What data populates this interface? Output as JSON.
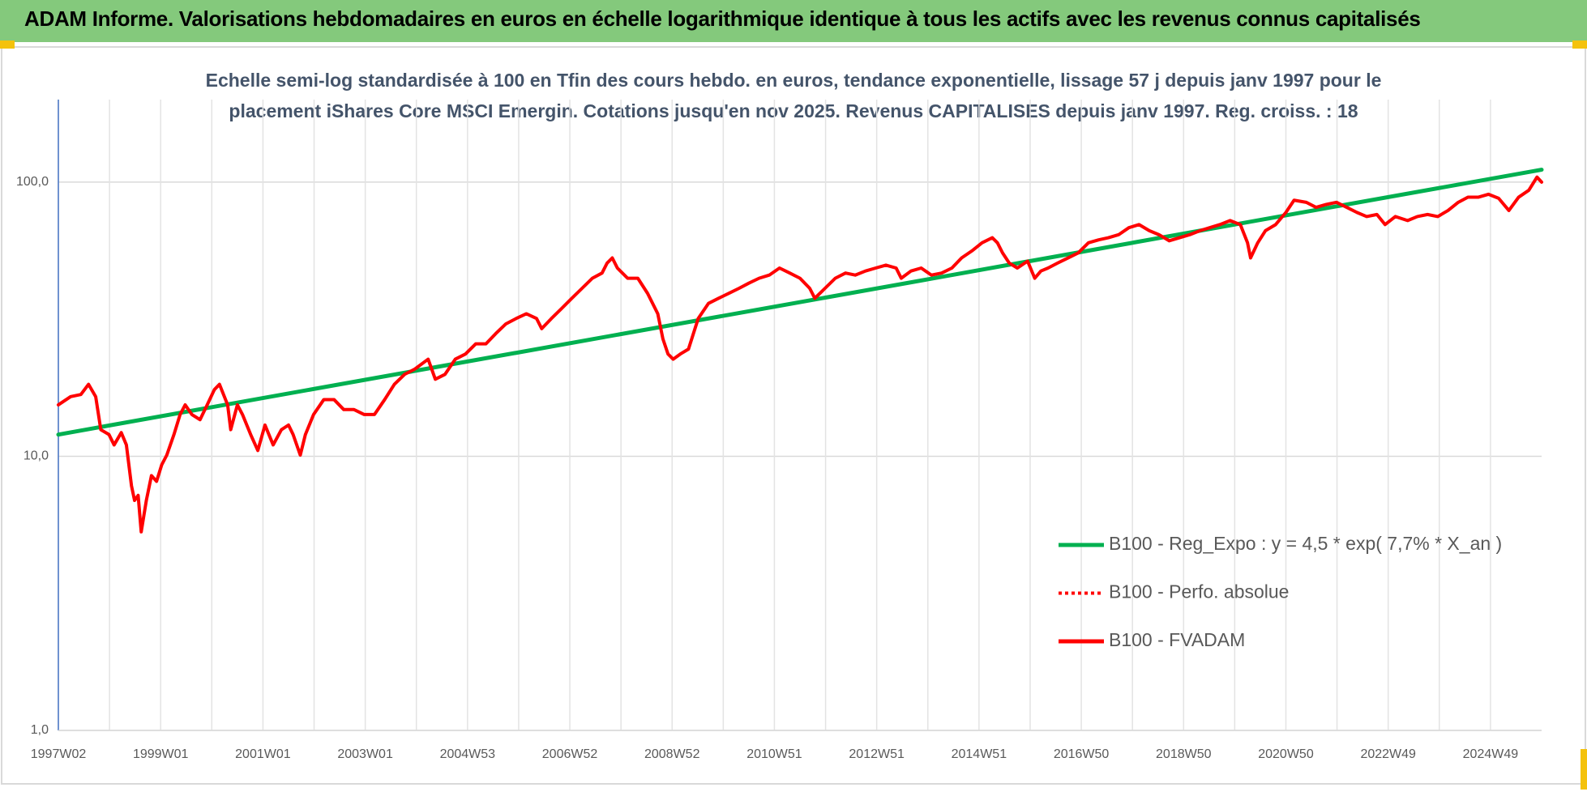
{
  "header": {
    "title": "ADAM Informe. Valorisations hebdomadaires en euros en échelle logarithmique identique à tous les actifs avec les revenus connus capitalisés"
  },
  "chart_data": {
    "type": "line",
    "subtitle": [
      "Echelle semi-log standardisée à 100 en Tfin des cours hebdo. en euros, tendance exponentielle, lissage 57 j depuis janv 1997 pour le",
      "placement iShares Core MSCI Emergin. Cotations jusqu'en nov 2025. Revenus CAPITALISES depuis janv 1997. Reg. croiss. : 18"
    ],
    "log_y": true,
    "grid": true,
    "legend": "lower right",
    "xlim": [
      1997,
      2026
    ],
    "xticks": [
      {
        "value": 1997,
        "label": "1997W02"
      },
      {
        "value": 1999,
        "label": "1999W01"
      },
      {
        "value": 2001,
        "label": "2001W01"
      },
      {
        "value": 2003,
        "label": "2003W01"
      },
      {
        "value": 2005,
        "label": "2004W53"
      },
      {
        "value": 2007,
        "label": "2006W52"
      },
      {
        "value": 2009,
        "label": "2008W52"
      },
      {
        "value": 2011,
        "label": "2010W51"
      },
      {
        "value": 2013,
        "label": "2012W51"
      },
      {
        "value": 2015,
        "label": "2014W51"
      },
      {
        "value": 2017,
        "label": "2016W50"
      },
      {
        "value": 2019,
        "label": "2018W50"
      },
      {
        "value": 2021,
        "label": "2020W50"
      },
      {
        "value": 2023,
        "label": "2022W49"
      },
      {
        "value": 2025,
        "label": "2024W49"
      }
    ],
    "ylim": [
      1,
      200
    ],
    "yticks": [
      {
        "value": 1,
        "label": "1,0"
      },
      {
        "value": 10,
        "label": "10,0"
      },
      {
        "value": 100,
        "label": "100,0"
      }
    ],
    "series": [
      {
        "name": "B100 - Reg_Expo : y = 4,5 * exp( 7,7% *  X_an )",
        "color": "#00b050",
        "x": [
          1997,
          2026
        ],
        "values": [
          12,
          111
        ]
      },
      {
        "name": "B100 - Perfo. absolue",
        "color": "#ff0000",
        "dash": "dotted"
      },
      {
        "name": "B100 - FVADAM",
        "color": "#ff0000",
        "x": [
          1997.0,
          1997.24,
          1997.44,
          1997.59,
          1997.73,
          1997.83,
          1997.99,
          1998.09,
          1998.23,
          1998.33,
          1998.43,
          1998.49,
          1998.56,
          1998.62,
          1998.72,
          1998.82,
          1998.92,
          1999.02,
          1999.12,
          1999.26,
          1999.38,
          1999.48,
          1999.61,
          1999.77,
          1999.91,
          2000.05,
          2000.15,
          2000.31,
          2000.37,
          2000.5,
          2000.6,
          2000.76,
          2000.9,
          2001.04,
          2001.2,
          2001.36,
          2001.5,
          2001.59,
          2001.73,
          2001.83,
          2001.99,
          2002.19,
          2002.39,
          2002.58,
          2002.78,
          2002.98,
          2003.18,
          2003.38,
          2003.57,
          2003.77,
          2003.97,
          2004.23,
          2004.37,
          2004.56,
          2004.76,
          2004.96,
          2005.16,
          2005.36,
          2005.55,
          2005.75,
          2005.95,
          2006.15,
          2006.35,
          2006.45,
          2006.64,
          2006.84,
          2007.04,
          2007.24,
          2007.44,
          2007.63,
          2007.73,
          2007.83,
          2007.93,
          2008.13,
          2008.33,
          2008.52,
          2008.72,
          2008.82,
          2008.92,
          2009.02,
          2009.16,
          2009.32,
          2009.51,
          2009.71,
          2009.91,
          2010.11,
          2010.31,
          2010.5,
          2010.7,
          2010.9,
          2011.1,
          2011.3,
          2011.5,
          2011.69,
          2011.79,
          2011.99,
          2012.19,
          2012.39,
          2012.58,
          2012.78,
          2012.98,
          2013.18,
          2013.38,
          2013.48,
          2013.67,
          2013.87,
          2014.07,
          2014.27,
          2014.47,
          2014.66,
          2014.86,
          2015.06,
          2015.26,
          2015.36,
          2015.46,
          2015.59,
          2015.75,
          2015.95,
          2016.09,
          2016.21,
          2016.35,
          2016.54,
          2016.74,
          2016.94,
          2017.14,
          2017.34,
          2017.53,
          2017.73,
          2017.93,
          2018.13,
          2018.33,
          2018.52,
          2018.72,
          2018.92,
          2019.12,
          2019.32,
          2019.51,
          2019.71,
          2019.91,
          2020.11,
          2020.25,
          2020.31,
          2020.45,
          2020.6,
          2020.8,
          2021.0,
          2021.16,
          2021.4,
          2021.59,
          2021.79,
          2021.99,
          2022.19,
          2022.39,
          2022.58,
          2022.78,
          2022.94,
          2023.14,
          2023.38,
          2023.57,
          2023.77,
          2023.97,
          2024.17,
          2024.37,
          2024.56,
          2024.76,
          2024.96,
          2025.16,
          2025.36,
          2025.55,
          2025.75,
          2025.91,
          2026.0
        ],
        "values": [
          15.4,
          16.5,
          16.8,
          18.3,
          16.5,
          12.5,
          12.0,
          11.0,
          12.2,
          11.0,
          7.8,
          6.9,
          7.2,
          5.3,
          6.9,
          8.5,
          8.1,
          9.3,
          10.1,
          12.0,
          14.2,
          15.4,
          14.2,
          13.6,
          15.4,
          17.5,
          18.3,
          15.4,
          12.5,
          15.4,
          14.2,
          12.0,
          10.5,
          13.0,
          11.0,
          12.5,
          13.0,
          12.0,
          10.1,
          12.0,
          14.2,
          16.1,
          16.1,
          14.8,
          14.8,
          14.2,
          14.2,
          16.1,
          18.3,
          19.9,
          20.8,
          22.6,
          19.1,
          19.9,
          22.6,
          23.6,
          25.7,
          25.7,
          28.0,
          30.4,
          31.8,
          33.1,
          31.8,
          29.2,
          31.8,
          34.6,
          37.7,
          41.0,
          44.6,
          46.6,
          50.7,
          52.9,
          48.6,
          44.6,
          44.6,
          39.3,
          33.1,
          26.8,
          23.6,
          22.6,
          23.6,
          24.6,
          31.8,
          36.1,
          37.7,
          39.3,
          41.0,
          42.8,
          44.6,
          45.8,
          48.6,
          46.6,
          44.6,
          41.0,
          37.7,
          41.0,
          44.6,
          46.6,
          45.8,
          47.4,
          48.6,
          49.8,
          48.6,
          44.6,
          47.4,
          48.6,
          45.8,
          46.6,
          48.6,
          52.9,
          56.1,
          60.1,
          62.7,
          60.1,
          55.2,
          50.7,
          48.6,
          51.5,
          44.6,
          47.4,
          48.6,
          50.7,
          52.9,
          55.2,
          60.1,
          61.6,
          62.7,
          64.3,
          68.2,
          70.0,
          66.5,
          64.3,
          61.1,
          62.7,
          64.3,
          66.5,
          68.2,
          70.0,
          72.4,
          70.0,
          60.1,
          52.9,
          60.1,
          66.5,
          70.0,
          77.5,
          85.9,
          84.4,
          80.9,
          82.9,
          84.4,
          80.9,
          77.5,
          74.9,
          76.2,
          70.0,
          74.9,
          72.4,
          74.9,
          76.2,
          74.9,
          78.8,
          84.4,
          88.1,
          88.1,
          90.3,
          87.3,
          78.8,
          88.1,
          93.4,
          104.3,
          100
        ]
      }
    ]
  }
}
